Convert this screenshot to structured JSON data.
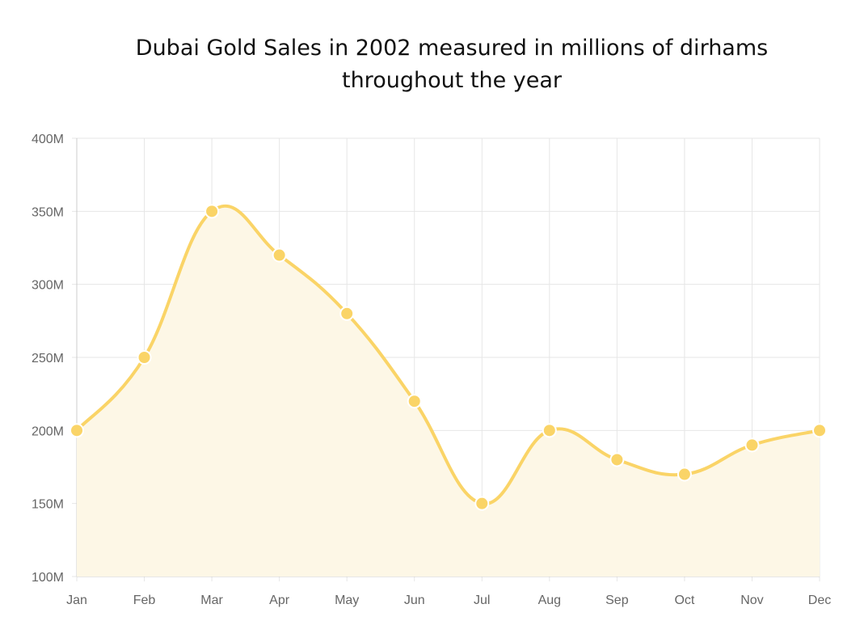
{
  "chart_data": {
    "type": "line",
    "title_lines": [
      "Dubai Gold Sales in 2002 measured in millions of dirhams",
      "throughout the year"
    ],
    "categories": [
      "Jan",
      "Feb",
      "Mar",
      "Apr",
      "May",
      "Jun",
      "Jul",
      "Aug",
      "Sep",
      "Oct",
      "Nov",
      "Dec"
    ],
    "series": [
      {
        "name": "Gold Sales",
        "values": [
          200,
          250,
          350,
          320,
          280,
          220,
          150,
          200,
          180,
          170,
          190,
          200
        ]
      }
    ],
    "ylim": [
      100,
      400
    ],
    "yticks": [
      100,
      150,
      200,
      250,
      300,
      350,
      400
    ],
    "ytick_labels": [
      "100M",
      "150M",
      "200M",
      "250M",
      "300M",
      "350M",
      "400M"
    ],
    "xlabel": "",
    "ylabel": "",
    "colors": {
      "line": "#fad467",
      "fill": "#fdf7e6",
      "grid": "#e6e6e6",
      "axis": "#cccccc"
    },
    "grid": true
  }
}
